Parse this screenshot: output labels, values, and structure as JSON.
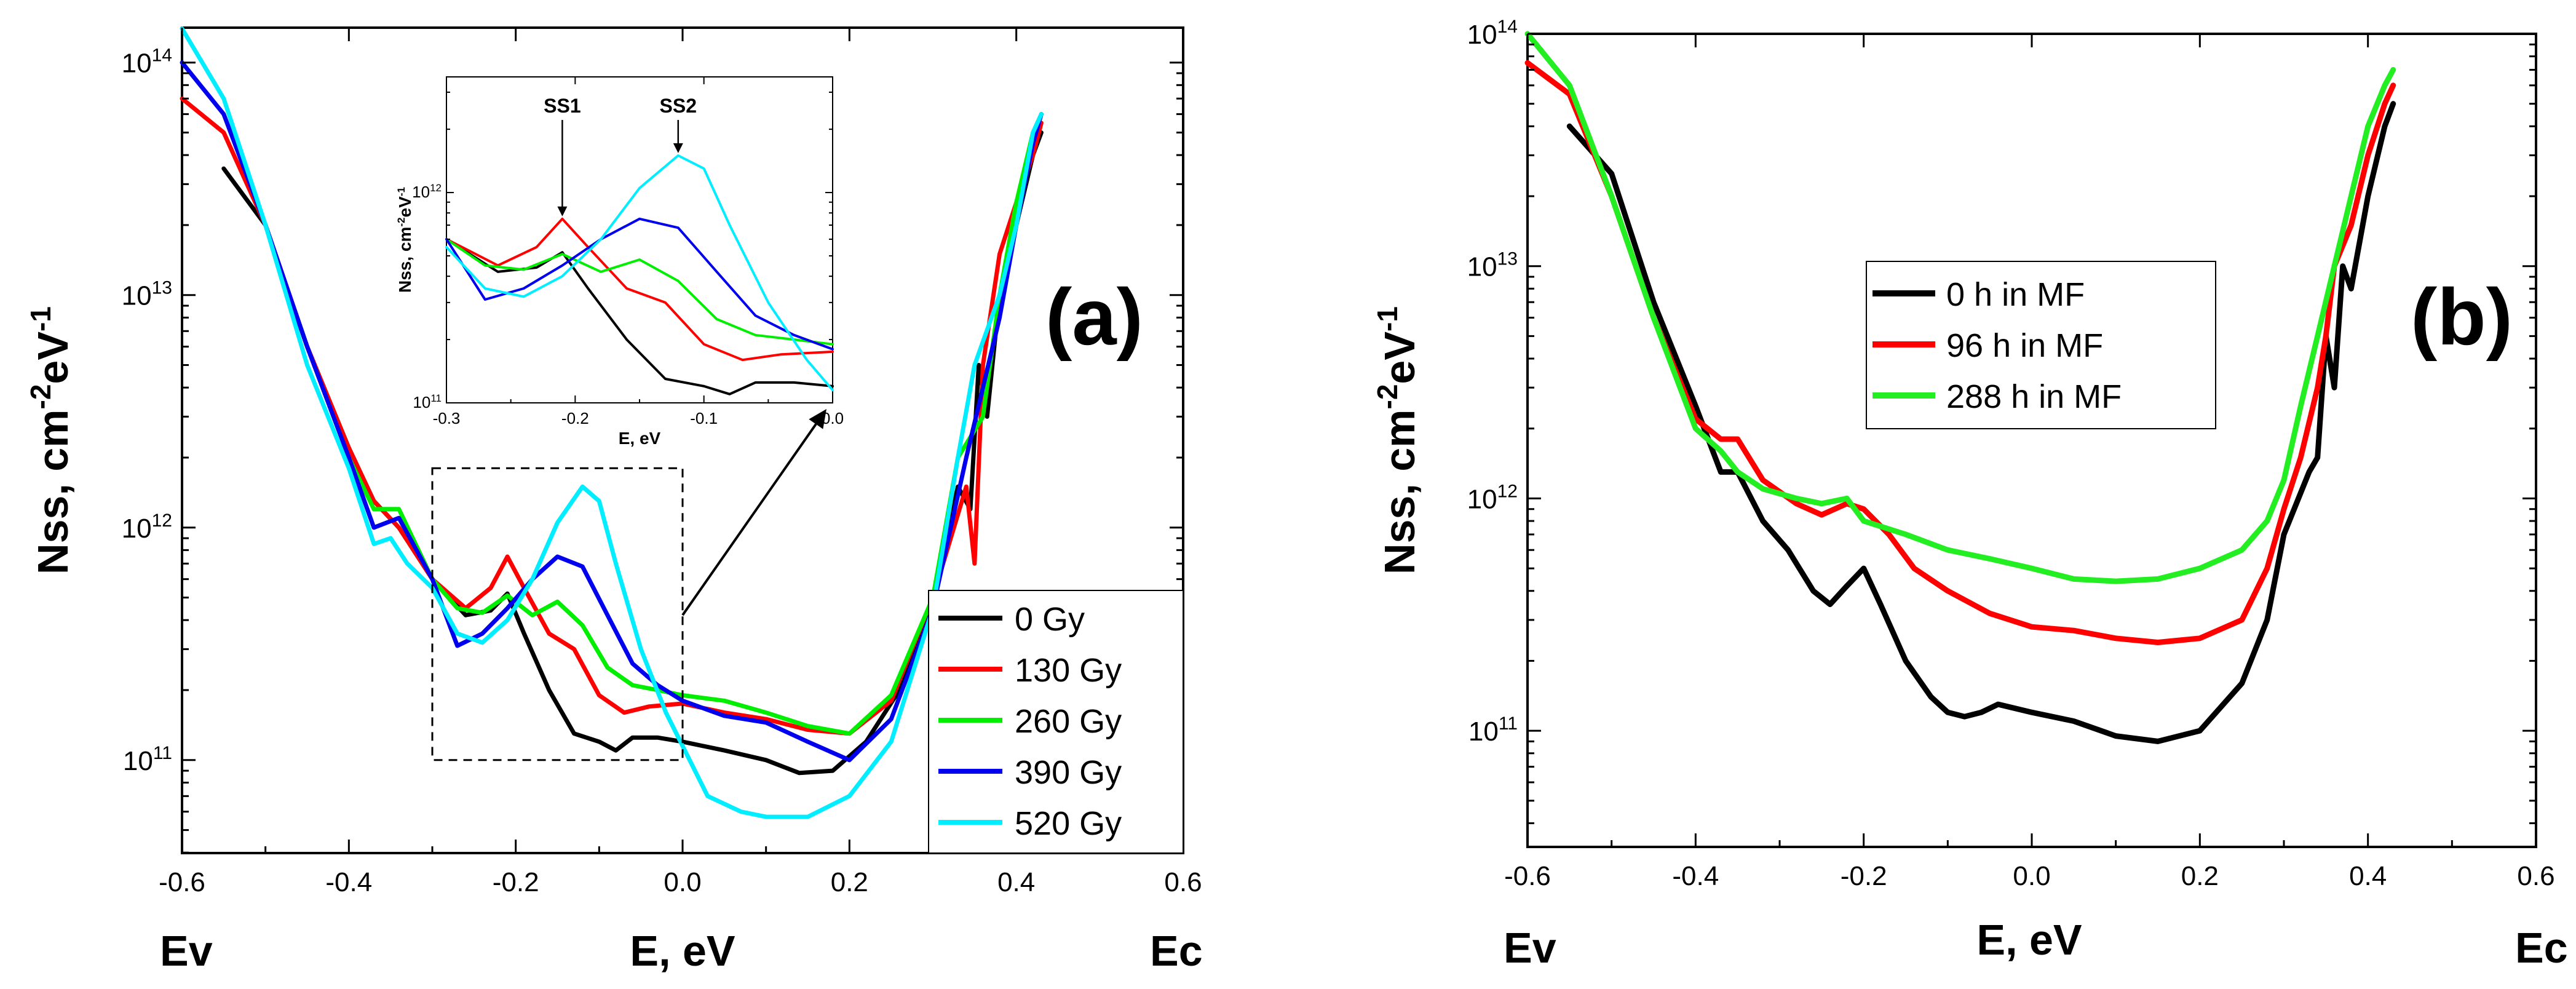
{
  "chart_data": [
    {
      "panel": "a",
      "type": "line",
      "panel_label": "(a)",
      "xlabel": "E, eV",
      "ylabel": "Nss, cm-2eV-1",
      "ylabel_parts": {
        "base": "Nss, cm",
        "sup1": "-2",
        "mid": "eV",
        "sup2": "-1"
      },
      "x_ticks": [
        -0.6,
        -0.4,
        -0.2,
        0.0,
        0.2,
        0.4,
        0.6
      ],
      "x_tick_labels": [
        "-0.6",
        "-0.4",
        "-0.2",
        "0.0",
        "0.2",
        "0.4",
        "0.6"
      ],
      "xlim": [
        -0.6,
        0.6
      ],
      "ylim_log10": [
        10.6,
        14.15
      ],
      "y_ticks_exp": [
        11,
        12,
        13,
        14
      ],
      "y_tick_base": "10",
      "y_tick_exps": [
        "11",
        "12",
        "13",
        "14"
      ],
      "left_end_label": "Ev",
      "right_end_label": "Ec",
      "legend_position": "bottom-right",
      "series": [
        {
          "name": "0 Gy",
          "color": "#000000",
          "x": [
            -0.55,
            -0.5,
            -0.45,
            -0.4,
            -0.37,
            -0.34,
            -0.3,
            -0.26,
            -0.23,
            -0.21,
            -0.19,
            -0.16,
            -0.13,
            -0.1,
            -0.08,
            -0.06,
            -0.03,
            0.0,
            0.05,
            0.1,
            0.14,
            0.18,
            0.22,
            0.26,
            0.3,
            0.33,
            0.345,
            0.355,
            0.365,
            0.38,
            0.4,
            0.42,
            0.43
          ],
          "y": [
            35000000000000.0,
            20000000000000.0,
            6000000000000.0,
            2200000000000.0,
            1300000000000.0,
            1000000000000.0,
            600000000000.0,
            420000000000.0,
            440000000000.0,
            520000000000.0,
            350000000000.0,
            200000000000.0,
            130000000000.0,
            120000000000.0,
            110000000000.0,
            125000000000.0,
            125000000000.0,
            120000000000.0,
            110000000000.0,
            100000000000.0,
            88000000000.0,
            90000000000.0,
            120000000000.0,
            200000000000.0,
            500000000000.0,
            1500000000000.0,
            1200000000000.0,
            5000000000000.0,
            3000000000000.0,
            10000000000000.0,
            20000000000000.0,
            40000000000000.0,
            50000000000000.0
          ]
        },
        {
          "name": "130 Gy",
          "color": "#ff0000",
          "x": [
            -0.6,
            -0.55,
            -0.5,
            -0.45,
            -0.4,
            -0.37,
            -0.34,
            -0.3,
            -0.26,
            -0.23,
            -0.21,
            -0.19,
            -0.16,
            -0.13,
            -0.1,
            -0.07,
            -0.04,
            0.0,
            0.05,
            0.1,
            0.15,
            0.2,
            0.25,
            0.3,
            0.34,
            0.35,
            0.36,
            0.38,
            0.4,
            0.42,
            0.43
          ],
          "y": [
            70000000000000.0,
            50000000000000.0,
            20000000000000.0,
            6000000000000.0,
            2200000000000.0,
            1300000000000.0,
            1000000000000.0,
            600000000000.0,
            450000000000.0,
            550000000000.0,
            750000000000.0,
            550000000000.0,
            350000000000.0,
            300000000000.0,
            190000000000.0,
            160000000000.0,
            170000000000.0,
            175000000000.0,
            160000000000.0,
            150000000000.0,
            135000000000.0,
            130000000000.0,
            180000000000.0,
            500000000000.0,
            1500000000000.0,
            700000000000.0,
            5000000000000.0,
            15000000000000.0,
            25000000000000.0,
            40000000000000.0,
            55000000000000.0
          ]
        },
        {
          "name": "260 Gy",
          "color": "#00ee00",
          "x": [
            -0.4,
            -0.37,
            -0.34,
            -0.3,
            -0.27,
            -0.24,
            -0.21,
            -0.18,
            -0.15,
            -0.12,
            -0.09,
            -0.06,
            -0.03,
            0.0,
            0.05,
            0.1,
            0.15,
            0.2,
            0.25,
            0.3,
            0.33,
            0.36,
            0.38,
            0.4,
            0.42,
            0.43
          ],
          "y": [
            2000000000000.0,
            1200000000000.0,
            1200000000000.0,
            600000000000.0,
            450000000000.0,
            430000000000.0,
            510000000000.0,
            420000000000.0,
            480000000000.0,
            380000000000.0,
            250000000000.0,
            210000000000.0,
            200000000000.0,
            190000000000.0,
            180000000000.0,
            160000000000.0,
            140000000000.0,
            130000000000.0,
            190000000000.0,
            500000000000.0,
            2000000000000.0,
            3000000000000.0,
            10000000000000.0,
            25000000000000.0,
            50000000000000.0,
            60000000000000.0
          ]
        },
        {
          "name": "390 Gy",
          "color": "#0000ee",
          "x": [
            -0.6,
            -0.55,
            -0.5,
            -0.45,
            -0.4,
            -0.37,
            -0.34,
            -0.3,
            -0.27,
            -0.24,
            -0.21,
            -0.18,
            -0.15,
            -0.12,
            -0.09,
            -0.06,
            -0.03,
            0.0,
            0.05,
            0.1,
            0.15,
            0.2,
            0.25,
            0.3,
            0.34,
            0.38,
            0.4,
            0.42,
            0.43
          ],
          "y": [
            100000000000000.0,
            60000000000000.0,
            20000000000000.0,
            6000000000000.0,
            2000000000000.0,
            1000000000000.0,
            1100000000000.0,
            600000000000.0,
            310000000000.0,
            350000000000.0,
            450000000000.0,
            600000000000.0,
            750000000000.0,
            680000000000.0,
            420000000000.0,
            260000000000.0,
            210000000000.0,
            180000000000.0,
            155000000000.0,
            145000000000.0,
            120000000000.0,
            100000000000.0,
            150000000000.0,
            450000000000.0,
            2000000000000.0,
            8000000000000.0,
            20000000000000.0,
            45000000000000.0,
            60000000000000.0
          ]
        },
        {
          "name": "520 Gy",
          "color": "#00eeff",
          "x": [
            -0.6,
            -0.55,
            -0.5,
            -0.45,
            -0.4,
            -0.37,
            -0.35,
            -0.33,
            -0.3,
            -0.27,
            -0.24,
            -0.21,
            -0.18,
            -0.15,
            -0.12,
            -0.1,
            -0.08,
            -0.05,
            -0.02,
            0.0,
            0.03,
            0.07,
            0.1,
            0.15,
            0.2,
            0.25,
            0.3,
            0.33,
            0.35,
            0.38,
            0.4,
            0.42,
            0.43
          ],
          "y": [
            140000000000000.0,
            70000000000000.0,
            20000000000000.0,
            5000000000000.0,
            1800000000000.0,
            850000000000.0,
            900000000000.0,
            700000000000.0,
            550000000000.0,
            350000000000.0,
            320000000000.0,
            400000000000.0,
            600000000000.0,
            1050000000000.0,
            1500000000000.0,
            1300000000000.0,
            700000000000.0,
            300000000000.0,
            160000000000.0,
            115000000000.0,
            70000000000.0,
            60000000000.0,
            57000000000.0,
            57000000000.0,
            70000000000.0,
            120000000000.0,
            450000000000.0,
            2000000000000.0,
            5000000000000.0,
            10000000000000.0,
            20000000000000.0,
            50000000000000.0,
            60000000000000.0
          ]
        }
      ],
      "inset": {
        "xlabel": "E, eV",
        "ylabel": "Nss, cm-2eV-1",
        "ylabel_parts": {
          "base": "Nss, cm",
          "sup1": "-2",
          "mid": "eV",
          "sup2": "-1"
        },
        "xlim": [
          -0.3,
          0.0
        ],
        "x_ticks": [
          -0.3,
          -0.2,
          -0.1,
          0.0
        ],
        "x_tick_labels": [
          "-0.3",
          "-0.2",
          "-0.1",
          "0.0"
        ],
        "ylim_log10": [
          11.0,
          12.55
        ],
        "y_ticks_exp": [
          11,
          12
        ],
        "y_tick_base": "10",
        "y_tick_exps": [
          "11",
          "12"
        ],
        "annotations": [
          {
            "text": "SS1",
            "x": -0.21,
            "y": 750000000000.0
          },
          {
            "text": "SS2",
            "x": -0.12,
            "y": 1500000000000.0
          }
        ]
      },
      "zoom_box": {
        "x_range": [
          -0.3,
          0.0
        ],
        "y_range": [
          100000000000.0,
          1800000000000.0
        ]
      }
    },
    {
      "panel": "b",
      "type": "line",
      "panel_label": "(b)",
      "xlabel": "E, eV",
      "ylabel": "Nss, cm-2eV-1",
      "ylabel_parts": {
        "base": "Nss, cm",
        "sup1": "-2",
        "mid": "eV",
        "sup2": "-1"
      },
      "x_ticks": [
        -0.6,
        -0.4,
        -0.2,
        0.0,
        0.2,
        0.4,
        0.6
      ],
      "x_tick_labels": [
        "-0.6",
        "-0.4",
        "-0.2",
        "0.0",
        "0.2",
        "0.4",
        "0.6"
      ],
      "xlim": [
        -0.6,
        0.6
      ],
      "ylim_log10": [
        10.5,
        14.0
      ],
      "y_ticks_exp": [
        11,
        12,
        13,
        14
      ],
      "y_tick_base": "10",
      "y_tick_exps": [
        "11",
        "12",
        "13",
        "14"
      ],
      "left_end_label": "Ev",
      "right_end_label": "Ec",
      "legend_position": "center",
      "series": [
        {
          "name": "0 h in MF",
          "color": "#000000",
          "x": [
            -0.55,
            -0.5,
            -0.45,
            -0.4,
            -0.37,
            -0.35,
            -0.32,
            -0.29,
            -0.26,
            -0.24,
            -0.22,
            -0.2,
            -0.18,
            -0.15,
            -0.12,
            -0.1,
            -0.08,
            -0.06,
            -0.04,
            0.0,
            0.05,
            0.1,
            0.15,
            0.2,
            0.25,
            0.28,
            0.3,
            0.33,
            0.34,
            0.35,
            0.36,
            0.37,
            0.38,
            0.4,
            0.42,
            0.43
          ],
          "y": [
            40000000000000.0,
            25000000000000.0,
            7000000000000.0,
            2500000000000.0,
            1300000000000.0,
            1300000000000.0,
            800000000000.0,
            600000000000.0,
            400000000000.0,
            350000000000.0,
            420000000000.0,
            500000000000.0,
            350000000000.0,
            200000000000.0,
            140000000000.0,
            120000000000.0,
            115000000000.0,
            120000000000.0,
            130000000000.0,
            120000000000.0,
            110000000000.0,
            95000000000.0,
            90000000000.0,
            100000000000.0,
            160000000000.0,
            300000000000.0,
            700000000000.0,
            1300000000000.0,
            1500000000000.0,
            5000000000000.0,
            3000000000000.0,
            10000000000000.0,
            8000000000000.0,
            20000000000000.0,
            40000000000000.0,
            50000000000000.0
          ]
        },
        {
          "name": "96 h in MF",
          "color": "#ff0000",
          "x": [
            -0.6,
            -0.55,
            -0.5,
            -0.45,
            -0.4,
            -0.37,
            -0.35,
            -0.32,
            -0.28,
            -0.25,
            -0.22,
            -0.2,
            -0.17,
            -0.14,
            -0.1,
            -0.05,
            0.0,
            0.05,
            0.1,
            0.15,
            0.2,
            0.25,
            0.28,
            0.3,
            0.32,
            0.34,
            0.35,
            0.36,
            0.38,
            0.4,
            0.42,
            0.43
          ],
          "y": [
            75000000000000.0,
            55000000000000.0,
            20000000000000.0,
            6000000000000.0,
            2200000000000.0,
            1800000000000.0,
            1800000000000.0,
            1200000000000.0,
            950000000000.0,
            850000000000.0,
            950000000000.0,
            900000000000.0,
            700000000000.0,
            500000000000.0,
            400000000000.0,
            320000000000.0,
            280000000000.0,
            270000000000.0,
            250000000000.0,
            240000000000.0,
            250000000000.0,
            300000000000.0,
            500000000000.0,
            900000000000.0,
            1500000000000.0,
            3000000000000.0,
            5000000000000.0,
            10000000000000.0,
            15000000000000.0,
            30000000000000.0,
            50000000000000.0,
            60000000000000.0
          ]
        },
        {
          "name": "288 h in MF",
          "color": "#22ee22",
          "x": [
            -0.6,
            -0.55,
            -0.5,
            -0.45,
            -0.4,
            -0.37,
            -0.35,
            -0.32,
            -0.28,
            -0.25,
            -0.22,
            -0.2,
            -0.15,
            -0.1,
            -0.05,
            0.0,
            0.05,
            0.1,
            0.15,
            0.2,
            0.25,
            0.28,
            0.3,
            0.32,
            0.34,
            0.36,
            0.38,
            0.4,
            0.42,
            0.43
          ],
          "y": [
            100000000000000.0,
            60000000000000.0,
            20000000000000.0,
            6000000000000.0,
            2000000000000.0,
            1600000000000.0,
            1300000000000.0,
            1100000000000.0,
            1000000000000.0,
            950000000000.0,
            1000000000000.0,
            800000000000.0,
            700000000000.0,
            600000000000.0,
            550000000000.0,
            500000000000.0,
            450000000000.0,
            440000000000.0,
            450000000000.0,
            500000000000.0,
            600000000000.0,
            800000000000.0,
            1200000000000.0,
            2500000000000.0,
            5000000000000.0,
            10000000000000.0,
            20000000000000.0,
            40000000000000.0,
            60000000000000.0,
            70000000000000.0
          ]
        }
      ]
    }
  ]
}
